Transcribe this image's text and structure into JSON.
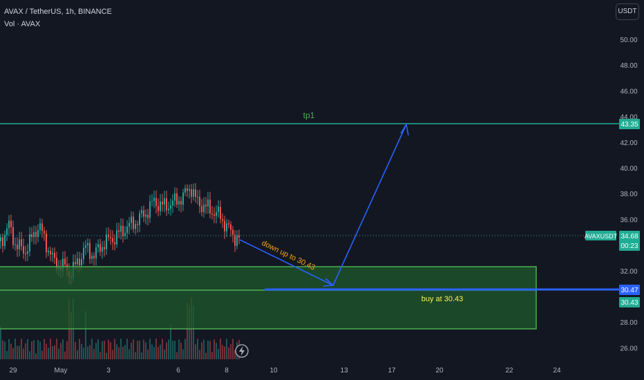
{
  "header": {
    "symbol_line": "AVAX / TetherUS, 1h, BINANCE",
    "volume_line": "Vol · AVAX"
  },
  "currency_button": "USDT",
  "price_axis": {
    "ticks": [
      "50.00",
      "48.00",
      "46.00",
      "44.00",
      "42.00",
      "40.00",
      "38.00",
      "36.00",
      "32.00",
      "28.00",
      "26.00"
    ],
    "tick_values": [
      50,
      48,
      46,
      44,
      42,
      40,
      38,
      36,
      32,
      28,
      26
    ]
  },
  "time_axis": {
    "ticks": [
      "29",
      "May",
      "3",
      "6",
      "8",
      "10",
      "13",
      "17",
      "20",
      "22",
      "24"
    ],
    "tick_positions_hint": "ordered left to right"
  },
  "markers": {
    "tp_label_badge": "43.35",
    "symbol_badge": "AVAXUSDT",
    "last_price": "34.68",
    "countdown": "00:23",
    "buy_line_price": "30.47",
    "buy_zone_price": "30.43"
  },
  "annotations": {
    "tp1": "tp1",
    "down_text": "down up to 30.43",
    "buy_text": "buy at 30.43"
  },
  "colors": {
    "background": "#131722",
    "up": "#26a69a",
    "down": "#ef5350",
    "tp_line": "#22ab94",
    "zone_fill": "#1f5a2c",
    "zone_border": "#4caf50",
    "arrow": "#2962ff",
    "down_text": "#f7a21b",
    "buy_text": "#ffee58"
  },
  "icons": {
    "flash_icon": "lightning-bolt"
  }
}
